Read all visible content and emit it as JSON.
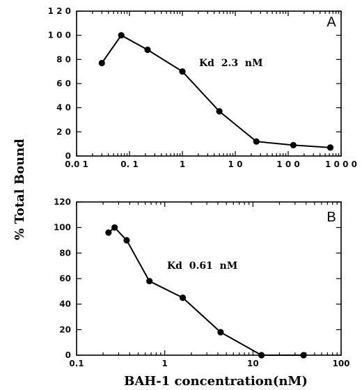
{
  "figure": {
    "ylabel": "% Total Bound",
    "xlabel": "BAH-1 concentration(nM)"
  },
  "chart_data": [
    {
      "type": "line",
      "panel": "A",
      "annotation": "Kd  2.3  nM",
      "x_scale": "log",
      "xlim": [
        0.01,
        1000
      ],
      "ylim": [
        0,
        120
      ],
      "x_ticks": [
        0.01,
        0.1,
        1,
        10,
        100,
        1000
      ],
      "x_tick_labels": [
        "0.0 1",
        "0. 1",
        "1",
        "1 0",
        "1 0 0",
        "1 0 0 0"
      ],
      "y_ticks": [
        0,
        20,
        40,
        60,
        80,
        100,
        120
      ],
      "y_tick_labels": [
        "0",
        "2 0",
        "4 0",
        "6 0",
        "8 0",
        "1 0 0",
        "1 2 0"
      ],
      "x": [
        0.03,
        0.07,
        0.22,
        1.0,
        5.0,
        25,
        125,
        625
      ],
      "y": [
        77,
        100,
        88,
        70,
        37,
        12,
        9,
        7
      ]
    },
    {
      "type": "line",
      "panel": "B",
      "annotation": "Kd  0.61  nM",
      "x_scale": "log",
      "xlim": [
        0.1,
        100
      ],
      "ylim": [
        0,
        120
      ],
      "x_ticks": [
        0.1,
        1,
        10,
        100
      ],
      "x_tick_labels": [
        "0.1",
        "1",
        "10",
        "100"
      ],
      "y_ticks": [
        0,
        20,
        40,
        60,
        80,
        100,
        120
      ],
      "y_tick_labels": [
        "0",
        "20",
        "40",
        "60",
        "80",
        "100",
        "120"
      ],
      "x": [
        0.23,
        0.27,
        0.37,
        0.67,
        1.6,
        4.3,
        12.5,
        37.5
      ],
      "y": [
        96,
        100,
        90,
        58,
        45,
        18,
        0,
        0
      ]
    }
  ]
}
